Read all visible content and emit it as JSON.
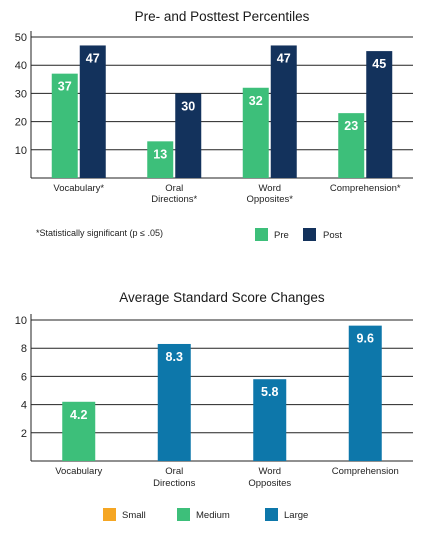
{
  "chart_data": [
    {
      "type": "bar",
      "title": "Pre- and Posttest Percentiles",
      "categories": [
        [
          "Vocabulary*"
        ],
        [
          "Oral",
          "Directions*"
        ],
        [
          "Word",
          "Opposites*"
        ],
        [
          "Comprehension*"
        ]
      ],
      "series": [
        {
          "name": "Pre",
          "color": "#3dbf7a",
          "values": [
            37,
            13,
            32,
            23
          ]
        },
        {
          "name": "Post",
          "color": "#13325c",
          "values": [
            47,
            30,
            47,
            45
          ]
        }
      ],
      "yticks": [
        10,
        20,
        30,
        40,
        50
      ],
      "ylim": [
        0,
        50
      ],
      "grid": true,
      "note": "*Statistically significant (p ≤ .05)",
      "legend": [
        {
          "label": "Pre",
          "color": "#3dbf7a"
        },
        {
          "label": "Post",
          "color": "#13325c"
        }
      ]
    },
    {
      "type": "bar",
      "title": "Average Standard Score Changes",
      "categories": [
        [
          "Vocabulary"
        ],
        [
          "Oral",
          "Directions"
        ],
        [
          "Word",
          "Opposites"
        ],
        [
          "Comprehension"
        ]
      ],
      "values": [
        4.2,
        8.3,
        5.8,
        9.6
      ],
      "bar_colors": [
        "#3dbf7a",
        "#0d77aa",
        "#0d77aa",
        "#0d77aa"
      ],
      "yticks": [
        2,
        4,
        6,
        8,
        10
      ],
      "ylim": [
        0,
        10
      ],
      "grid": true,
      "legend": [
        {
          "label": "Small",
          "color": "#f5a623"
        },
        {
          "label": "Medium",
          "color": "#3dbf7a"
        },
        {
          "label": "Large",
          "color": "#0d77aa"
        }
      ]
    }
  ]
}
